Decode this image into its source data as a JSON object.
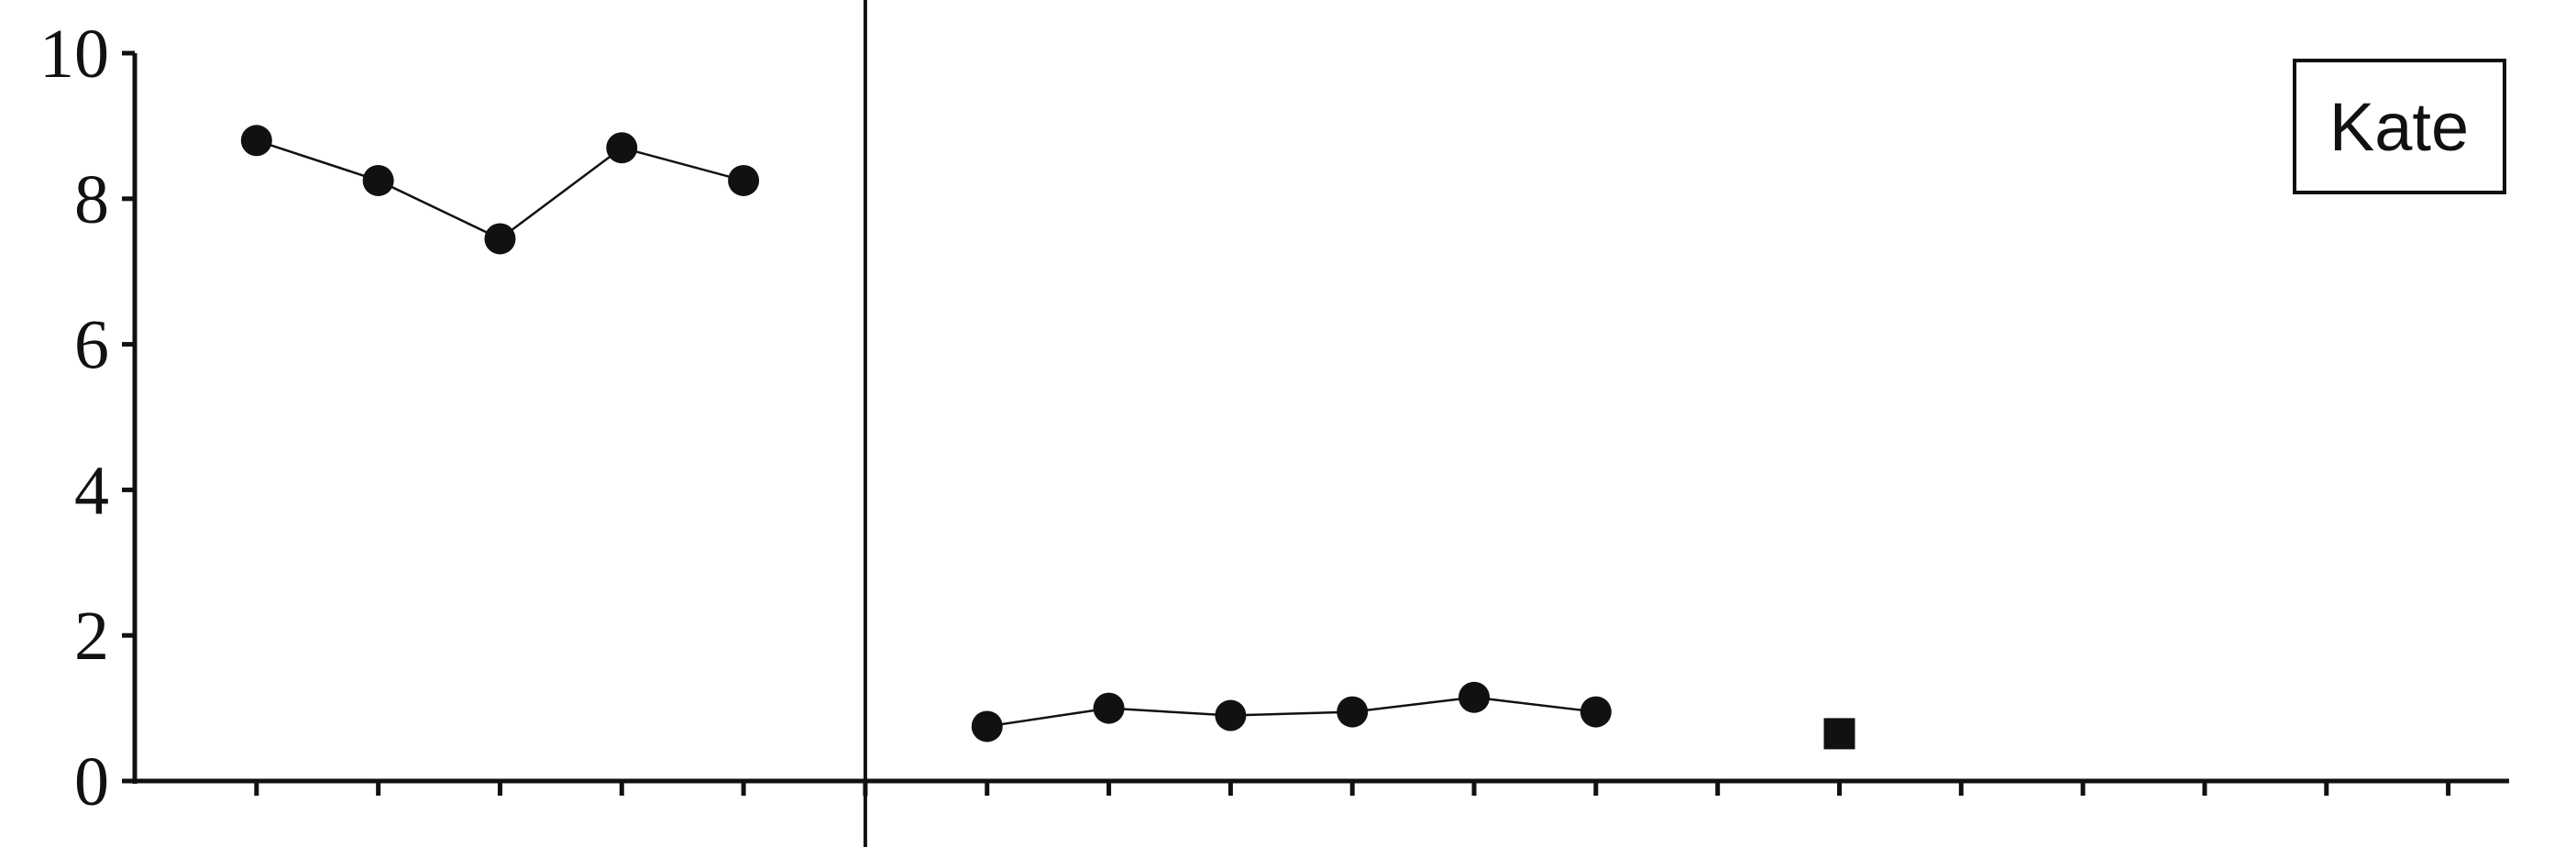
{
  "chart_data": {
    "type": "line",
    "title": "",
    "xlabel": "",
    "ylabel": "",
    "ylim": [
      0,
      10
    ],
    "xlim": [
      0,
      19.5
    ],
    "y_ticks": [
      "0",
      "2",
      "4",
      "6",
      "8",
      "10"
    ],
    "x_tick_count": 19,
    "phase_line_x": 6,
    "legend": {
      "label": "Kate",
      "placement": "top-right"
    },
    "series": [
      {
        "marker": "circle",
        "x": [
          1,
          2,
          3,
          4,
          5
        ],
        "y": [
          8.8,
          8.25,
          7.45,
          8.7,
          8.25
        ]
      },
      {
        "marker": "circle",
        "x": [
          7,
          8,
          9,
          10,
          11,
          12
        ],
        "y": [
          0.75,
          1.0,
          0.9,
          0.95,
          1.15,
          0.95
        ]
      },
      {
        "marker": "square",
        "x": [
          14
        ],
        "y": [
          0.65
        ]
      }
    ],
    "grid": false
  }
}
